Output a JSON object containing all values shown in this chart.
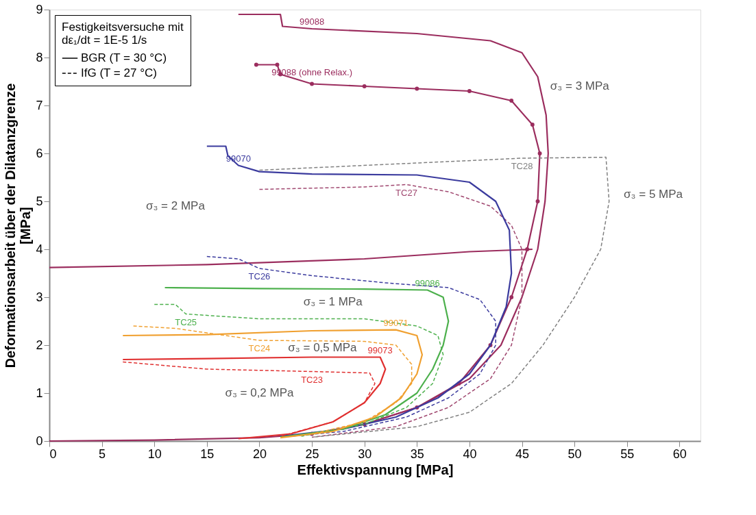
{
  "chart_data": {
    "type": "line",
    "xlabel": "Effektivspannung [MPa]",
    "ylabel": "Deformationsarbeit über der Dilatanzgrenze\n[MPa]",
    "legend_title": "Festigkeitsversuche mit\ndε₁/dt = 1E-5 1/s",
    "xlim": [
      0,
      62
    ],
    "xticks": [
      0,
      5,
      10,
      15,
      20,
      25,
      30,
      35,
      40,
      45,
      50,
      55,
      60
    ],
    "ylim": [
      0,
      9
    ],
    "yticks": [
      0,
      1,
      2,
      3,
      4,
      5,
      6,
      7,
      8,
      9
    ],
    "legend": "top left",
    "series": [
      {
        "name": "99088",
        "color": "#9b2d5e",
        "line_style": "solid",
        "x": [
          18,
          22,
          22.2,
          25,
          35,
          42,
          45,
          46.5,
          47.3,
          47.5,
          47.2,
          46.5,
          45,
          43,
          40,
          35,
          30,
          25,
          20,
          10,
          0
        ],
        "values": [
          8.9,
          8.9,
          8.65,
          8.6,
          8.5,
          8.35,
          8.1,
          7.6,
          6.8,
          6,
          5,
          4,
          3,
          2,
          1.3,
          0.7,
          0.35,
          0.15,
          0.07,
          0.02,
          0
        ]
      },
      {
        "name": "99088 (ohne Relax.)",
        "color": "#9b2d5e",
        "line_style": "solid",
        "marker": "circle",
        "x": [
          19.7,
          21.7,
          22,
          25,
          30,
          35,
          40,
          44,
          46,
          46.7,
          46.5,
          45.5,
          44,
          42,
          39,
          35,
          30,
          25
        ],
        "values": [
          7.85,
          7.85,
          7.65,
          7.45,
          7.4,
          7.35,
          7.3,
          7.1,
          6.6,
          6,
          5,
          4,
          3,
          2,
          1.2,
          0.7,
          0.35,
          0.15
        ]
      },
      {
        "color": "#9b2d5e",
        "line_style": "solid",
        "x": [
          0,
          15,
          30,
          40,
          46
        ],
        "values": [
          3.62,
          3.68,
          3.8,
          3.95,
          4.0
        ]
      },
      {
        "name": "TC27",
        "color": "#a04870",
        "line_style": "dashed",
        "x": [
          20,
          30,
          34,
          38,
          42,
          44,
          45,
          45,
          44,
          42,
          38,
          33,
          25
        ],
        "values": [
          5.25,
          5.3,
          5.35,
          5.2,
          4.9,
          4.5,
          4,
          3,
          2,
          1.3,
          0.7,
          0.3,
          0.08
        ]
      },
      {
        "name": "TC28",
        "color": "#808080",
        "line_style": "dashed",
        "x": [
          20,
          35,
          45,
          53,
          53.3,
          52.5,
          50,
          47,
          44,
          40,
          35,
          25
        ],
        "values": [
          5.65,
          5.8,
          5.9,
          5.92,
          5,
          4,
          3,
          2,
          1.2,
          0.6,
          0.3,
          0.08
        ]
      },
      {
        "name": "99070",
        "color": "#3b3b9e",
        "line_style": "solid",
        "x": [
          15,
          16.8,
          17,
          18,
          20,
          25,
          35,
          40,
          42.5,
          43.8,
          44,
          43.5,
          42,
          40,
          37,
          33,
          28,
          22
        ],
        "values": [
          6.15,
          6.15,
          5.95,
          5.75,
          5.62,
          5.57,
          5.55,
          5.4,
          5,
          4.4,
          3.5,
          2.8,
          2,
          1.4,
          0.9,
          0.5,
          0.25,
          0.1
        ]
      },
      {
        "name": "TC26",
        "color": "#3b3b9e",
        "line_style": "dashed",
        "x": [
          15,
          18,
          20,
          25,
          32,
          38,
          41,
          42.5,
          42.5,
          41,
          38,
          34,
          28,
          22
        ],
        "values": [
          3.85,
          3.8,
          3.6,
          3.45,
          3.3,
          3.2,
          2.95,
          2.5,
          2,
          1.4,
          0.9,
          0.5,
          0.2,
          0.08
        ]
      },
      {
        "name": "99086",
        "color": "#4cb04c",
        "line_style": "solid",
        "x": [
          11,
          20,
          30,
          36,
          37.5,
          38,
          37.5,
          36.5,
          35,
          32,
          28,
          22
        ],
        "values": [
          3.2,
          3.18,
          3.17,
          3.15,
          3.0,
          2.5,
          2,
          1.5,
          1,
          0.55,
          0.25,
          0.08
        ]
      },
      {
        "name": "TC25",
        "color": "#4cb04c",
        "line_style": "dashed",
        "x": [
          10,
          12,
          13,
          20,
          30,
          35,
          37,
          37.5,
          36.5,
          34,
          30,
          24
        ],
        "values": [
          2.85,
          2.85,
          2.65,
          2.55,
          2.55,
          2.4,
          2.2,
          1.8,
          1.2,
          0.7,
          0.35,
          0.1
        ]
      },
      {
        "name": "99071",
        "color": "#f0a030",
        "line_style": "solid",
        "x": [
          7,
          15,
          25,
          33,
          35,
          35.5,
          35,
          33.5,
          31,
          27,
          22
        ],
        "values": [
          2.2,
          2.22,
          2.3,
          2.32,
          2.2,
          1.8,
          1.4,
          0.9,
          0.5,
          0.2,
          0.07
        ]
      },
      {
        "name": "TC24",
        "color": "#f0a030",
        "line_style": "dashed",
        "x": [
          8,
          12,
          20,
          30,
          33,
          34.5,
          34.5,
          33,
          30,
          25
        ],
        "values": [
          2.4,
          2.35,
          2.1,
          2.08,
          2.0,
          1.6,
          1.2,
          0.8,
          0.4,
          0.15
        ]
      },
      {
        "name": "99073",
        "color": "#e03030",
        "line_style": "solid",
        "x": [
          7,
          15,
          25,
          31.5,
          32,
          31.5,
          30,
          27,
          23,
          18
        ],
        "values": [
          1.7,
          1.72,
          1.75,
          1.75,
          1.5,
          1.2,
          0.8,
          0.4,
          0.15,
          0.05
        ]
      },
      {
        "name": "TC23",
        "color": "#e03030",
        "line_style": "dashed",
        "x": [
          7,
          15,
          25,
          30.5,
          31,
          30,
          27,
          22
        ],
        "values": [
          1.65,
          1.5,
          1.45,
          1.42,
          1.2,
          0.8,
          0.4,
          0.1
        ]
      }
    ],
    "annotations": [
      "BGR (T = 30 °C)",
      "IfG (T = 27 °C)",
      "σ₃ = 3 MPa",
      "σ₃ = 5 MPa",
      "σ₃ = 2 MPa",
      "σ₃ = 1 MPa",
      "σ₃ = 0,5 MPa",
      "σ₃ = 0,2 MPa"
    ]
  }
}
